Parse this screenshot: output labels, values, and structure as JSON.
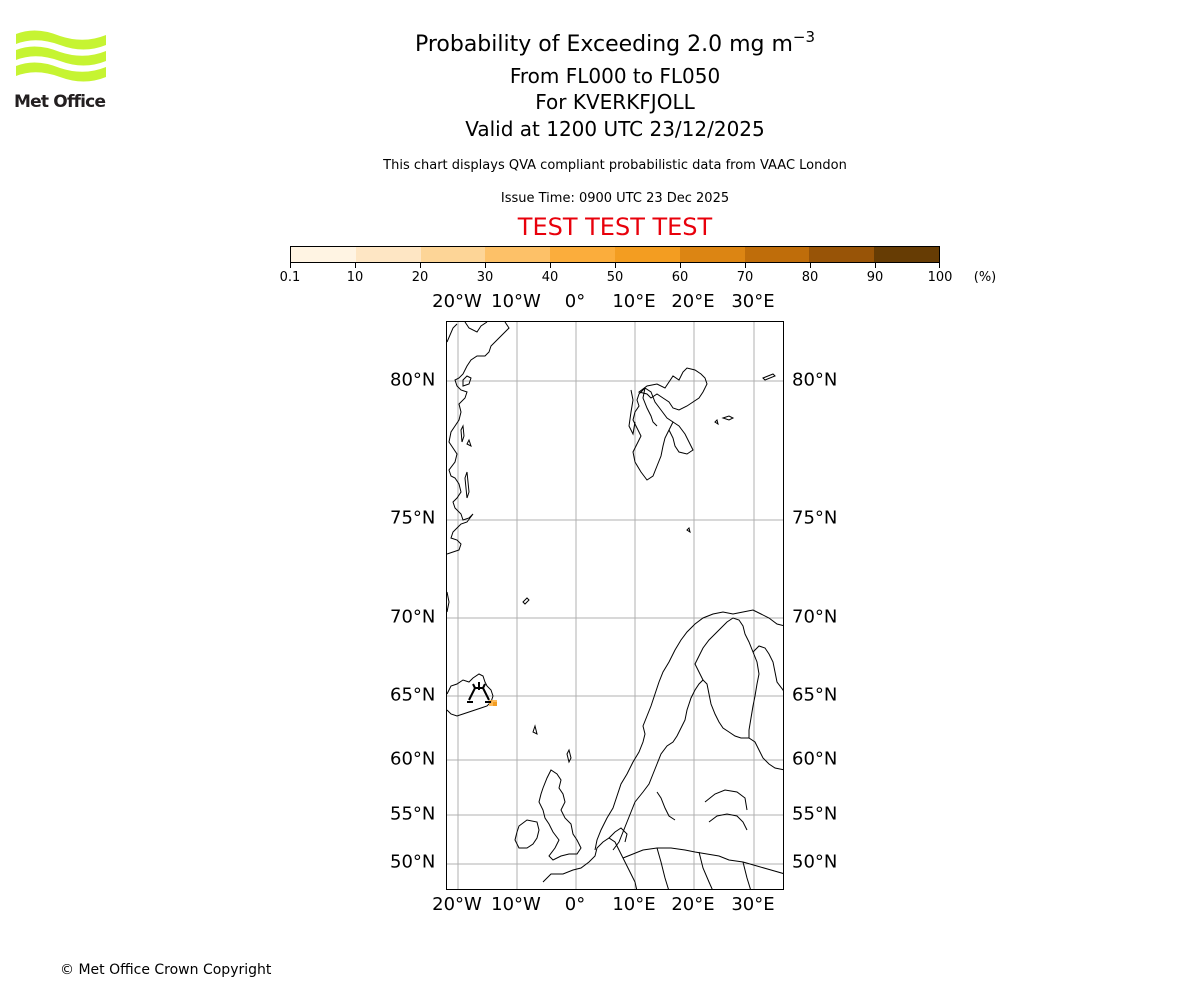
{
  "logo": {
    "name": "Met Office",
    "icon": "met-office-wave-logo",
    "color": "#c6f432",
    "text_color": "#231f20"
  },
  "header": {
    "title": "Probability of Exceeding 2.0 mg m",
    "title_superscript": "−3",
    "level_range": "From FL000 to FL050",
    "volcano": "For KVERKFJOLL",
    "valid_time": "Valid at 1200 UTC 23/12/2025",
    "description": "This chart displays QVA compliant probabilistic data from VAAC London",
    "issue_time": "Issue Time: 0900 UTC 23 Dec 2025",
    "test_banner": "TEST TEST TEST",
    "test_color": "#e8000b"
  },
  "colorbar": {
    "unit_label": "(%)",
    "ticks": [
      "0.1",
      "10",
      "20",
      "30",
      "40",
      "50",
      "60",
      "70",
      "80",
      "90",
      "100"
    ],
    "colors": [
      "#fff4e3",
      "#fee6c4",
      "#fdd597",
      "#fdc168",
      "#fbad3c",
      "#f39d21",
      "#dc8513",
      "#bf6d0a",
      "#985407",
      "#663c04"
    ]
  },
  "map": {
    "lon_labels": [
      "20°W",
      "10°W",
      "0°",
      "10°E",
      "20°E",
      "30°E"
    ],
    "lat_labels": [
      "80°N",
      "75°N",
      "70°N",
      "65°N",
      "60°N",
      "55°N",
      "50°N"
    ],
    "volcano_symbol": "volcano-icon",
    "gridline_color": "#b0b0b0",
    "ash_patch_color": "#fbad3c"
  },
  "chart_data": {
    "type": "heatmap",
    "title": "Probability of Exceeding 2.0 mg m−3 — From FL000 to FL050 — For KVERKFJOLL — Valid at 1200 UTC 23/12/2025",
    "subtitle": "This chart displays QVA compliant probabilistic data from VAAC London; Issue Time: 0900 UTC 23 Dec 2025",
    "annotation": "TEST TEST TEST",
    "colorbar_bins_percent": [
      0.1,
      10,
      20,
      30,
      40,
      50,
      60,
      70,
      80,
      90,
      100
    ],
    "colorbar_label": "(%)",
    "xlabel_ticks": [
      "20°W",
      "10°W",
      "0°",
      "10°E",
      "20°E",
      "30°E"
    ],
    "ylabel_ticks": [
      "80°N",
      "75°N",
      "70°N",
      "65°N",
      "60°N",
      "55°N",
      "50°N"
    ],
    "extent": {
      "lon": [
        -22,
        35
      ],
      "lat": [
        48,
        83
      ]
    },
    "grid": true,
    "features": [
      {
        "name": "KVERKFJOLL volcano",
        "lon": -16.7,
        "lat": 64.65,
        "symbol": "volcano"
      },
      {
        "name": "ash probability patch",
        "lon": -14.5,
        "lat": 64.3,
        "probability_bin": "30-50%"
      }
    ]
  },
  "footer": {
    "copyright": "© Met Office Crown Copyright"
  }
}
